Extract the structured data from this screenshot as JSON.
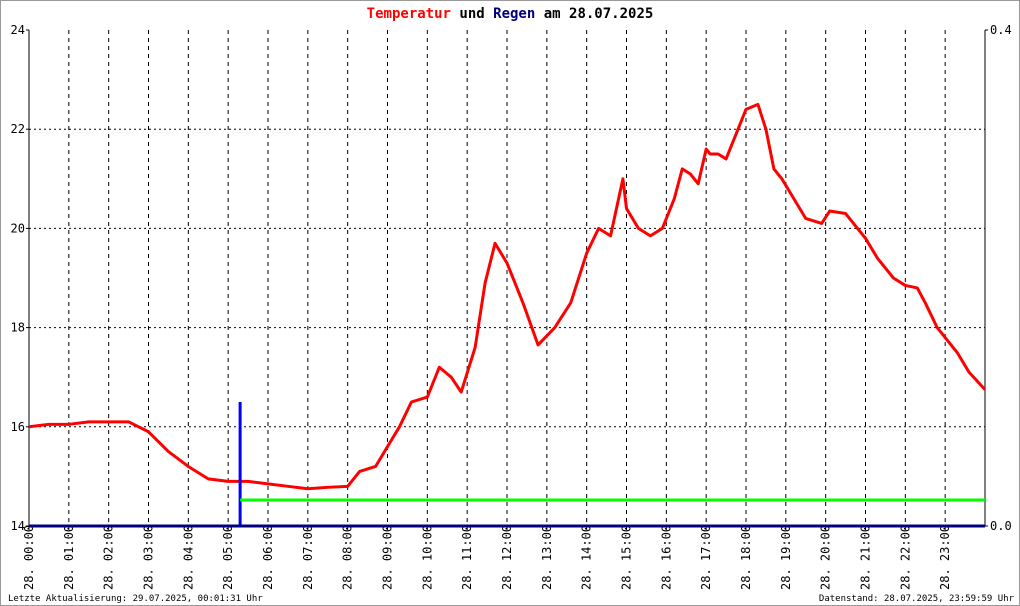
{
  "chart_data": {
    "type": "line",
    "title": [
      "Temperatur",
      "und",
      "Regen",
      "am 28.07.2025"
    ],
    "title_colors": [
      "#ff0000",
      "#000000",
      "#000080",
      "#000000"
    ],
    "xlim": [
      0,
      24
    ],
    "xticks": [
      {
        "value": 0,
        "label": "28. 00:00"
      },
      {
        "value": 1,
        "label": "28. 01:00"
      },
      {
        "value": 2,
        "label": "28. 02:00"
      },
      {
        "value": 3,
        "label": "28. 03:00"
      },
      {
        "value": 4,
        "label": "28. 04:00"
      },
      {
        "value": 5,
        "label": "28. 05:00"
      },
      {
        "value": 6,
        "label": "28. 06:00"
      },
      {
        "value": 7,
        "label": "28. 07:00"
      },
      {
        "value": 8,
        "label": "28. 08:00"
      },
      {
        "value": 9,
        "label": "28. 09:00"
      },
      {
        "value": 10,
        "label": "28. 10:00"
      },
      {
        "value": 11,
        "label": "28. 11:00"
      },
      {
        "value": 12,
        "label": "28. 12:00"
      },
      {
        "value": 13,
        "label": "28. 13:00"
      },
      {
        "value": 14,
        "label": "28. 14:00"
      },
      {
        "value": 15,
        "label": "28. 15:00"
      },
      {
        "value": 16,
        "label": "28. 16:00"
      },
      {
        "value": 17,
        "label": "28. 17:00"
      },
      {
        "value": 18,
        "label": "28. 18:00"
      },
      {
        "value": 19,
        "label": "28. 19:00"
      },
      {
        "value": 20,
        "label": "28. 20:00"
      },
      {
        "value": 21,
        "label": "28. 21:00"
      },
      {
        "value": 22,
        "label": "28. 22:00"
      },
      {
        "value": 23,
        "label": "28. 23:00"
      }
    ],
    "ylim": [
      14,
      24
    ],
    "yticks": [
      14,
      16,
      18,
      20,
      22,
      24
    ],
    "y2lim": [
      0,
      0.4
    ],
    "y2ticks": [
      {
        "value": 0,
        "label": "0.0"
      },
      0.4
    ],
    "grid": true,
    "series": [
      {
        "name": "Temperatur",
        "color": "#ff0000",
        "kind": "line",
        "x": [
          0,
          0.5,
          1,
          1.5,
          2,
          2.5,
          3,
          3.5,
          4,
          4.5,
          5,
          5.5,
          6,
          6.5,
          7,
          7.5,
          8,
          8.3,
          8.7,
          9,
          9.3,
          9.6,
          10,
          10.3,
          10.6,
          10.85,
          11.2,
          11.45,
          11.7,
          12,
          12.4,
          12.78,
          13.2,
          13.6,
          14,
          14.3,
          14.6,
          14.91,
          15.0,
          15.3,
          15.6,
          15.9,
          16.2,
          16.4,
          16.6,
          16.8,
          17.0,
          17.1,
          17.3,
          17.5,
          17.8,
          18.0,
          18.3,
          18.5,
          18.7,
          18.9,
          19.2,
          19.5,
          19.9,
          20.1,
          20.5,
          20.8,
          21.0,
          21.3,
          21.7,
          22.0,
          22.3,
          22.5,
          22.8,
          23.0,
          23.3,
          23.6,
          24
        ],
        "values": [
          16.0,
          16.05,
          16.05,
          16.1,
          16.1,
          16.1,
          15.9,
          15.5,
          15.2,
          14.95,
          14.9,
          14.9,
          14.85,
          14.8,
          14.75,
          14.78,
          14.8,
          15.1,
          15.2,
          15.6,
          16.0,
          16.5,
          16.6,
          17.2,
          17.0,
          16.7,
          17.6,
          18.9,
          19.7,
          19.3,
          18.5,
          17.65,
          18.0,
          18.5,
          19.5,
          20.0,
          19.85,
          21.0,
          20.4,
          20.0,
          19.85,
          20.0,
          20.6,
          21.2,
          21.1,
          20.9,
          21.6,
          21.5,
          21.5,
          21.4,
          22.0,
          22.4,
          22.5,
          22.0,
          21.2,
          21.0,
          20.6,
          20.2,
          20.1,
          20.35,
          20.3,
          20.0,
          19.8,
          19.4,
          19.0,
          18.85,
          18.8,
          18.5,
          18.0,
          17.8,
          17.5,
          17.1,
          16.75
        ]
      },
      {
        "name": "Regen",
        "color": "#0000ff",
        "kind": "bar",
        "axis": "y2",
        "x": [
          5.3
        ],
        "values": [
          0.1
        ]
      },
      {
        "color": "#00ff00",
        "kind": "line",
        "axis": "y2",
        "x": [
          5.3,
          24
        ],
        "values": [
          0.021,
          0.021
        ]
      }
    ],
    "footer_left": "Letzte Aktualisierung: 29.07.2025, 00:01:31 Uhr",
    "footer_right": "Datenstand: 28.07.2025, 23:59:59 Uhr"
  }
}
